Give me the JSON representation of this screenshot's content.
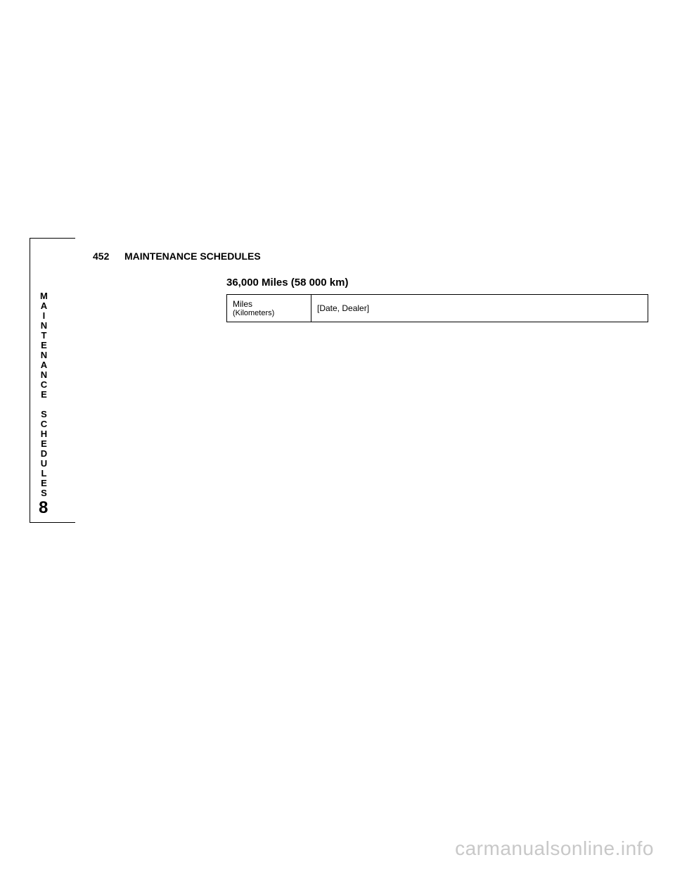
{
  "tab": {
    "line1": "MAINTENANCE",
    "line2": "SCHEDULES",
    "number": "8"
  },
  "header": {
    "page_number": "452",
    "title": "MAINTENANCE SCHEDULES"
  },
  "section": {
    "title": "36,000 Miles (58 000 km)"
  },
  "table": {
    "rows": [
      {
        "label_top": "Miles",
        "label_bottom": "(Kilometers)",
        "value": "[Date, Dealer]"
      }
    ]
  },
  "watermark": "carmanualsonline.info",
  "colors": {
    "background": "#ffffff",
    "text": "#000000",
    "border": "#000000",
    "watermark": "#c8c8c8"
  }
}
